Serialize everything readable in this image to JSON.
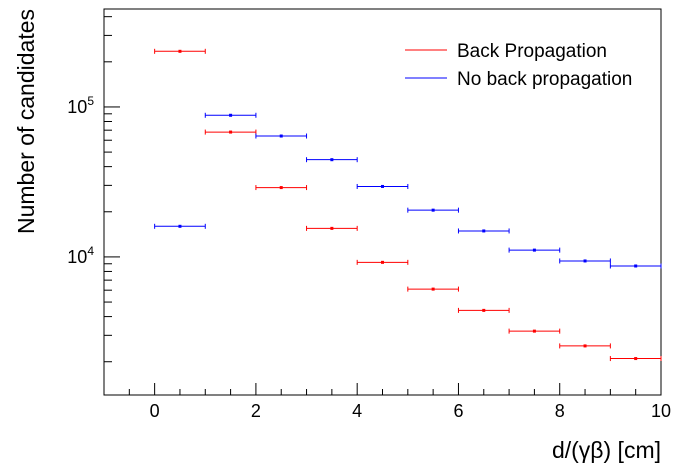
{
  "chart_data": {
    "type": "scatter",
    "xlabel": "d/(γβ) [cm]",
    "ylabel": "Number of candidates",
    "xlim": [
      -1,
      10
    ],
    "ylim": [
      1200,
      450000
    ],
    "y_scale": "log",
    "x_ticks": [
      "0",
      "2",
      "4",
      "6",
      "8",
      "10"
    ],
    "y_ticks": [
      {
        "base": "10",
        "exp": "4",
        "value": 10000
      },
      {
        "base": "10",
        "exp": "5",
        "value": 100000
      }
    ],
    "grid": false,
    "legend_position": "top-right",
    "series": [
      {
        "name": "Back Propagation",
        "color": "#ff0000",
        "x": [
          0.5,
          1.5,
          2.5,
          3.5,
          4.5,
          5.5,
          6.5,
          7.5,
          8.5,
          9.5
        ],
        "xerr": 0.5,
        "y": [
          235000,
          68000,
          29000,
          15500,
          9200,
          6100,
          4400,
          3200,
          2550,
          2100
        ]
      },
      {
        "name": "No back propagation",
        "color": "#0000ff",
        "x": [
          0.5,
          1.5,
          2.5,
          3.5,
          4.5,
          5.5,
          6.5,
          7.5,
          8.5,
          9.5
        ],
        "xerr": 0.5,
        "y": [
          16000,
          88000,
          64000,
          44500,
          29500,
          20500,
          14900,
          11100,
          9400,
          8700
        ]
      }
    ]
  }
}
